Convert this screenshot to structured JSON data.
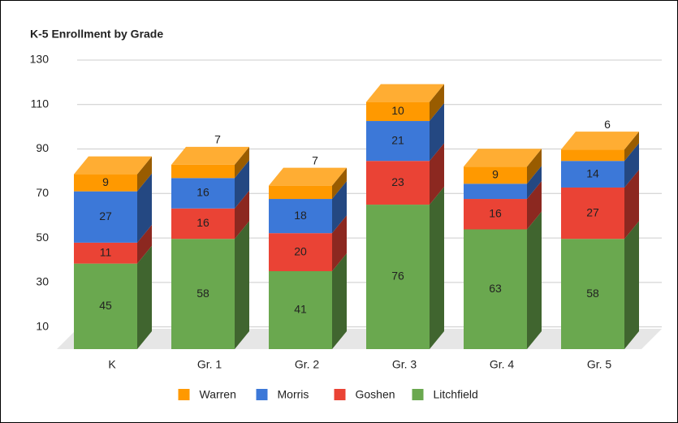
{
  "chart_data": {
    "type": "bar3d_stacked",
    "title": "K-5 Enrollment by Grade",
    "categories": [
      "K",
      "Gr. 1",
      "Gr. 2",
      "Gr. 3",
      "Gr. 4",
      "Gr. 5"
    ],
    "series": [
      {
        "name": "Litchfield",
        "color": "#6aa84f",
        "values": [
          45,
          58,
          41,
          76,
          63,
          58
        ]
      },
      {
        "name": "Goshen",
        "color": "#ea4335",
        "values": [
          11,
          16,
          20,
          23,
          16,
          27
        ]
      },
      {
        "name": "Morris",
        "color": "#3c78d8",
        "values": [
          27,
          16,
          18,
          21,
          8,
          14
        ]
      },
      {
        "name": "Warren",
        "color": "#ff9900",
        "values": [
          9,
          7,
          7,
          10,
          9,
          6
        ]
      }
    ],
    "ylim": [
      0,
      130
    ],
    "yticks": [
      10,
      30,
      50,
      70,
      90,
      110,
      130
    ],
    "grid": true
  }
}
